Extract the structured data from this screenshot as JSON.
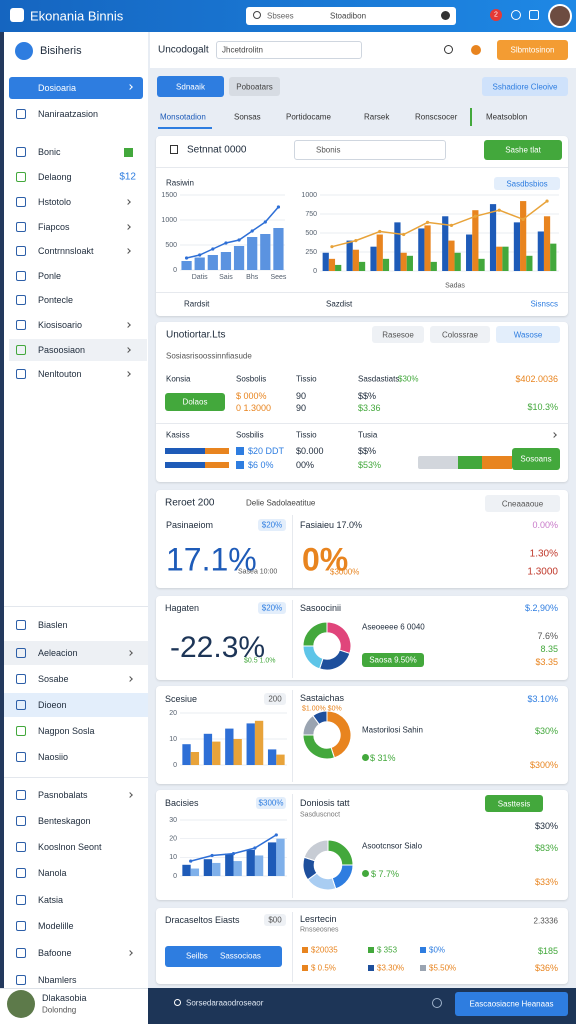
{
  "header": {
    "app_name": "Ekonania Binnis",
    "search_placeholder": "Sbsees",
    "search_scope": "Stoadibon",
    "notification_count": "2"
  },
  "sidebar": {
    "title": "Bisiheris",
    "active_item": "Dosioaria",
    "items": [
      "Naniraatzasion",
      "Bonic",
      "Delaong",
      "Hstotolo",
      "Fiapcos",
      "Contrnnsloakt",
      "Ponle",
      "Pontecle",
      "Kiosisoario",
      "Pasoosiaon",
      "Nenltouton"
    ],
    "badge": "$12",
    "lower_items": [
      "Biaslen",
      "Aeleacion",
      "Sosabe",
      "Dioeon",
      "Nagpon Sosla",
      "Naosiio"
    ],
    "bottom_items": [
      "Pasnobalats",
      "Benteskagon",
      "Kooslnon Seont",
      "Nanola",
      "Katsia",
      "Modelille",
      "Bafoone",
      "Nbamlers"
    ],
    "user_name": "Dlakasobia",
    "user_role": "Dolondng"
  },
  "toolbar": {
    "label": "Uncodogalt",
    "dropdown": "Jhcetdrolitn",
    "button": "Slbmtosinon"
  },
  "tabs": {
    "primary": "Sdnaaik",
    "secondary": "Poboatars",
    "action": "Sshadiore Cleoive",
    "items": [
      "Monsotadion",
      "Sonsas",
      "Portidocame",
      "Rarsek",
      "Ronscsocer",
      "Meatsoblon"
    ]
  },
  "overview": {
    "title": "Setnnat 0000",
    "search": "Sbonis",
    "button": "Sashe tlat",
    "left_title": "Rasiwin",
    "right_badge": "Sasdbsbios",
    "left_chart": {
      "type": "bar",
      "ylim": [
        0,
        1500
      ],
      "yticks": [
        0,
        500,
        1000,
        1500
      ],
      "categories": [
        null,
        "Datis",
        null,
        "Sais",
        null,
        "Bhs",
        null,
        "Sees"
      ],
      "series": [
        {
          "color": "#5b93e0",
          "values": [
            180,
            250,
            300,
            360,
            480,
            660,
            720,
            840
          ]
        }
      ],
      "line": {
        "color": "#2e6fd6",
        "values": [
          240,
          300,
          420,
          540,
          600,
          780,
          960,
          1260
        ]
      }
    },
    "right_chart": {
      "type": "bar",
      "ylim": [
        0,
        1000
      ],
      "yticks": [
        0,
        250,
        500,
        750,
        1000
      ],
      "series": [
        {
          "color": "#1e5bb8",
          "values": [
            240,
            400,
            320,
            640,
            560,
            720,
            480,
            880,
            640,
            520
          ]
        },
        {
          "color": "#e8841f",
          "values": [
            160,
            280,
            480,
            240,
            600,
            400,
            800,
            320,
            920,
            720
          ]
        },
        {
          "color": "#43a83c",
          "values": [
            80,
            120,
            160,
            200,
            120,
            240,
            160,
            320,
            200,
            360
          ]
        }
      ],
      "line": {
        "color": "#e8a33a",
        "values": [
          320,
          400,
          520,
          480,
          640,
          600,
          720,
          800,
          680,
          920
        ]
      }
    },
    "right_caption": "Sadas",
    "footer_left": "Rardsit",
    "footer_mid": "Sazdist",
    "footer_right": "Sisnscs"
  },
  "summary": {
    "title": "Unotiortar.Lts",
    "subtitle": "Sosiasrisoossinnfiasude",
    "buttons": [
      "Rasesoe",
      "Colossrae",
      "Wasose"
    ],
    "header": [
      "Konsia",
      "Sosbolis",
      "Tissio",
      "Sasdastiats"
    ],
    "header_value": "$30%",
    "total": "$402.0036",
    "button": "Dolaos",
    "col2": [
      "$ 000%",
      "0 1.3000"
    ],
    "col3": [
      "90",
      "90"
    ],
    "col4": [
      "$$%",
      "$3.36"
    ],
    "right_value": "$10.3%",
    "header2": [
      "Kasiss",
      "Sosbilis",
      "Tissio",
      "Tusia"
    ],
    "rows2": [
      [
        "$20 DDT",
        "$0.000",
        "$$%"
      ],
      [
        "$6 0%",
        "00%",
        "$53%"
      ]
    ],
    "progress_button": "Sosoans"
  },
  "kpi": {
    "title": "Reroet 200",
    "subtitle": "Delie Sadolaeatitue",
    "dropdown": "Cneaaaoue",
    "left_label": "Pasinaeiom",
    "left_badge": "$20%",
    "left_value": "17.1%",
    "left_note": "Sasea 10:00",
    "right_label": "Fasiaieu 17.0%",
    "right_corner": "0.00%",
    "right_value": "0%",
    "right_note": "$3000%",
    "right_values": [
      "1.30%",
      "1.3000"
    ]
  },
  "growth": {
    "left_label": "Hagaten",
    "left_badge": "$20%",
    "left_value": "-22.3%",
    "left_note": "$0.5 1.0%",
    "right_label": "Sasoocinii",
    "right_corner": "$.2,90%",
    "donut": {
      "type": "donut",
      "values": [
        30,
        25,
        20,
        25
      ],
      "colors": [
        "#e0457b",
        "#1e4f9c",
        "#5ec5e8",
        "#43a83c"
      ]
    },
    "legend_title": "Aseoeeee 6 0040",
    "button": "Saosa 9.50%",
    "right_values": [
      "7.6%",
      "8.35",
      "$3.35"
    ]
  },
  "sales": {
    "label": "Scesiue",
    "badge": "200",
    "chart": {
      "type": "bar",
      "ylim": [
        0,
        20
      ],
      "yticks": [
        0,
        10,
        20
      ],
      "series": [
        {
          "color": "#2e6fd6",
          "values": [
            8,
            12,
            14,
            16,
            6
          ]
        },
        {
          "color": "#e8a33a",
          "values": [
            5,
            9,
            10,
            17,
            4
          ]
        }
      ]
    },
    "right_label": "Sastaichas",
    "right_corner": "$3.10%",
    "right_sub": "$1.00% $0%",
    "donut": {
      "type": "donut",
      "values": [
        45,
        30,
        15,
        10
      ],
      "colors": [
        "#e8841f",
        "#43a83c",
        "#9aa4b1",
        "#1e4f9c"
      ]
    },
    "legend_title": "Mastorilosi Sahin",
    "legend_value": "$ 31%",
    "right_values": [
      "$30%",
      "$300%"
    ]
  },
  "trend": {
    "label": "Bacisies",
    "badge": "$300%",
    "chart": {
      "type": "bar",
      "ylim": [
        0,
        30
      ],
      "yticks": [
        0,
        10,
        20,
        30
      ],
      "series": [
        {
          "color": "#1e5bb8",
          "values": [
            6,
            9,
            12,
            14,
            18
          ]
        },
        {
          "color": "#7fb0ea",
          "values": [
            4,
            7,
            8,
            11,
            20
          ]
        }
      ],
      "line": {
        "color": "#2e6fd6",
        "values": [
          8,
          11,
          12,
          15,
          22
        ]
      }
    },
    "right_label": "Doniosis tatt",
    "button": "Sasttesis",
    "right_sub": "Sasduscnoct",
    "right_corner": "$30%",
    "donut": {
      "type": "donut",
      "values": [
        25,
        20,
        20,
        15,
        20
      ],
      "colors": [
        "#43a83c",
        "#2e7de0",
        "#a9cdf2",
        "#1e4f9c",
        "#c7ccd4"
      ]
    },
    "legend_title": "Asootcnsor Sialo",
    "legend_value": "$ 7.7%",
    "right_values": [
      "$83%",
      "$33%"
    ]
  },
  "details": {
    "label": "Dracaseltos Eiasts",
    "badge": "$00",
    "button": "Seilbs",
    "button_extra": "Sassocioas",
    "right_label": "Lesrtecin",
    "right_sub": "Rnsseosnes",
    "right_corner": "2.3336",
    "legend": [
      "$20035",
      "$ 353",
      "$0%"
    ],
    "legend2": [
      "$ 0.5%",
      "$3.30%",
      "$5.50%"
    ],
    "right_values": [
      "$185",
      "$36%"
    ]
  },
  "footer": {
    "status": "Sorsedaraaodroseaor",
    "button": "Eascaosiacne Heanaas"
  }
}
